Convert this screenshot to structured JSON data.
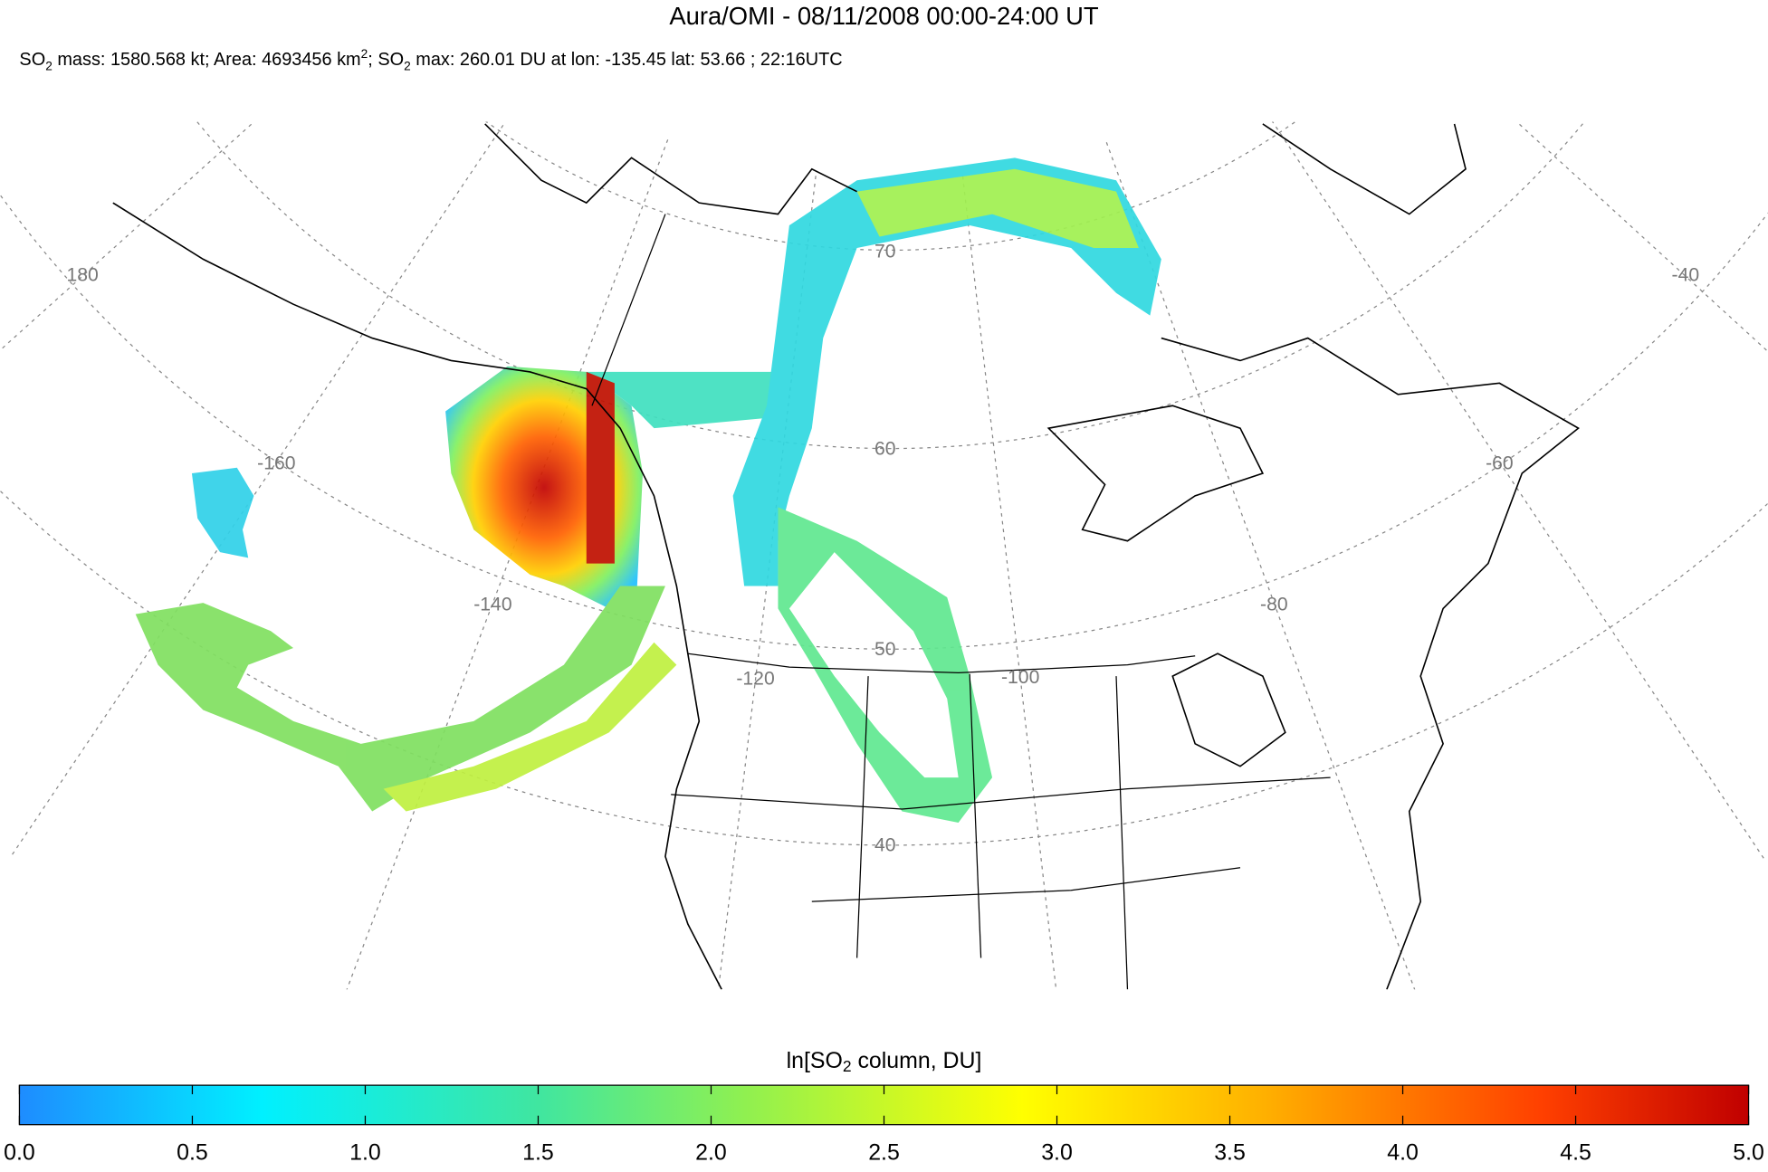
{
  "header": {
    "title": "Aura/OMI - 08/11/2008 00:00-24:00 UT",
    "subtitle": [
      "SO",
      "2",
      " mass: 1580.568 kt; Area: 4693456 km",
      "2",
      "; SO",
      "2",
      " max: 260.01 DU at lon: -135.45 lat: 53.66 ; 22:16UTC"
    ]
  },
  "map": {
    "longitude_labels": [
      "180",
      "-160",
      "-140",
      "-120",
      "-100",
      "-80",
      "-60",
      "-40"
    ],
    "latitude_labels": [
      "70",
      "60",
      "50",
      "40"
    ]
  },
  "colorbar": {
    "label": [
      "ln[SO",
      "2",
      " column, DU]"
    ],
    "clim": [
      0,
      5
    ],
    "ticks": [
      {
        "value": 0,
        "label": "0.0"
      },
      {
        "value": 0.5,
        "label": "0.5"
      },
      {
        "value": 1,
        "label": "1.0"
      },
      {
        "value": 1.5,
        "label": "1.5"
      },
      {
        "value": 2,
        "label": "2.0"
      },
      {
        "value": 2.5,
        "label": "2.5"
      },
      {
        "value": 3,
        "label": "3.0"
      },
      {
        "value": 3.5,
        "label": "3.5"
      },
      {
        "value": 4,
        "label": "4.0"
      },
      {
        "value": 4.5,
        "label": "4.5"
      },
      {
        "value": 5,
        "label": "5.0"
      }
    ]
  }
}
